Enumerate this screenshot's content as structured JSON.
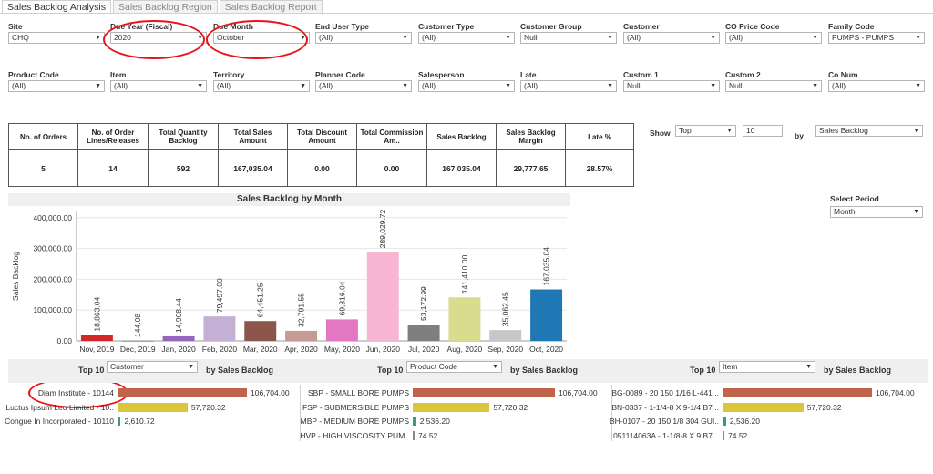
{
  "tabs": [
    "Sales Backlog Analysis",
    "Sales Backlog Region",
    "Sales Backlog Report"
  ],
  "filters_row1": [
    {
      "label": "Site",
      "value": "CHQ"
    },
    {
      "label": "Due Year (Fiscal)",
      "value": "2020"
    },
    {
      "label": "Due Month",
      "value": "October"
    },
    {
      "label": "End User Type",
      "value": "(All)"
    },
    {
      "label": "Customer Type",
      "value": "(All)"
    },
    {
      "label": "Customer Group",
      "value": "Null"
    },
    {
      "label": "Customer",
      "value": "(All)"
    },
    {
      "label": "CO Price Code",
      "value": "(All)"
    },
    {
      "label": "Family Code",
      "value": "PUMPS - PUMPS"
    }
  ],
  "filters_row2": [
    {
      "label": "Product Code",
      "value": "(All)"
    },
    {
      "label": "Item",
      "value": "(All)"
    },
    {
      "label": "Territory",
      "value": "(All)"
    },
    {
      "label": "Planner Code",
      "value": "(All)"
    },
    {
      "label": "Salesperson",
      "value": "(All)"
    },
    {
      "label": "Late",
      "value": "(All)"
    },
    {
      "label": "Custom 1",
      "value": "Null"
    },
    {
      "label": "Custom 2",
      "value": "Null"
    },
    {
      "label": "Co Num",
      "value": "(All)"
    }
  ],
  "kpi": {
    "headers": [
      "No. of Orders",
      "No. of Order Lines/Releases",
      "Total Quantity Backlog",
      "Total Sales Amount",
      "Total Discount Amount",
      "Total Commission Am..",
      "Sales Backlog",
      "Sales Backlog Margin",
      "Late %"
    ],
    "values": [
      "5",
      "14",
      "592",
      "167,035.04",
      "0.00",
      "0.00",
      "167,035.04",
      "29,777.65",
      "28.57%"
    ]
  },
  "show_controls": {
    "show_label": "Show",
    "top_value": "Top",
    "count_value": "10",
    "by_label": "by",
    "by_value": "Sales Backlog"
  },
  "select_period": {
    "label": "Select Period",
    "value": "Month"
  },
  "chart_data": {
    "type": "bar",
    "title": "Sales Backlog by Month",
    "ylabel": "Sales Backlog",
    "xlabel": "",
    "ylim": [
      0,
      420000
    ],
    "yticks": [
      0,
      100000,
      200000,
      300000,
      400000
    ],
    "ytick_labels": [
      "0.00",
      "100,000.00",
      "200,000.00",
      "300,000.00",
      "400,000.00"
    ],
    "categories": [
      "Nov, 2019",
      "Dec, 2019",
      "Jan, 2020",
      "Feb, 2020",
      "Mar, 2020",
      "Apr, 2020",
      "May, 2020",
      "Jun, 2020",
      "Jul, 2020",
      "Aug, 2020",
      "Sep, 2020",
      "Oct, 2020"
    ],
    "values": [
      18863.04,
      144.08,
      14908.44,
      79497.0,
      64451.25,
      32791.55,
      69816.04,
      289029.72,
      53172.99,
      141410.0,
      35062.45,
      167035.04
    ],
    "value_labels": [
      "18,863.04",
      "144.08",
      "14,908.44",
      "79,497.00",
      "64,451.25",
      "32,791.55",
      "69,816.04",
      "289,029.72",
      "53,172.99",
      "141,410.00",
      "35,062.45",
      "167,035.04"
    ],
    "colors": [
      "#d62728",
      "#444444",
      "#9467bd",
      "#c5b0d5",
      "#8c564b",
      "#c49c94",
      "#e377c2",
      "#f7b6d2",
      "#7f7f7f",
      "#dbdb8d",
      "#c7c7c7",
      "#1f77b4"
    ],
    "grid": true,
    "legend": "none"
  },
  "bottom": {
    "customer": {
      "top_label": "Top 10",
      "select_value": "Customer",
      "by_label": "by Sales Backlog",
      "rows": [
        {
          "label": "Diam Institute - 10144",
          "value": 106704.0,
          "value_label": "106,704.00",
          "color": "#c0634b"
        },
        {
          "label": "Luctus Ipsum Leo Limited - 10..",
          "value": 57720.32,
          "value_label": "57,720.32",
          "color": "#d9c63a"
        },
        {
          "label": "Congue In Incorporated - 10110",
          "value": 2610.72,
          "value_label": "2,610.72",
          "color": "#3d9a7a"
        }
      ]
    },
    "product": {
      "top_label": "Top 10",
      "select_value": "Product Code",
      "by_label": "by Sales Backlog",
      "rows": [
        {
          "label": "SBP - SMALL BORE PUMPS",
          "value": 106704.0,
          "value_label": "106,704.00",
          "color": "#c0634b"
        },
        {
          "label": "FSP - SUBMERSIBLE PUMPS",
          "value": 57720.32,
          "value_label": "57,720.32",
          "color": "#d9c63a"
        },
        {
          "label": "MBP - MEDIUM BORE PUMPS",
          "value": 2536.2,
          "value_label": "2,536.20",
          "color": "#3d9a7a"
        },
        {
          "label": "HVP - HIGH VISCOSITY PUM..",
          "value": 74.52,
          "value_label": "74.52",
          "color": "#8a8a8a"
        }
      ]
    },
    "item": {
      "top_label": "Top 10",
      "select_value": "Item",
      "by_label": "by Sales Backlog",
      "rows": [
        {
          "label": "BG-0089 - 20 150 1/16 L-441 ..",
          "value": 106704.0,
          "value_label": "106,704.00",
          "color": "#c0634b"
        },
        {
          "label": "BN-0337 - 1-1/4-8 X 9-1/4 B7 ..",
          "value": 57720.32,
          "value_label": "57,720.32",
          "color": "#d9c63a"
        },
        {
          "label": "BH-0107 - 20 150 1/8 304 GUI..",
          "value": 2536.2,
          "value_label": "2,536.20",
          "color": "#3d9a7a"
        },
        {
          "label": "051114063A - 1-1/8-8 X 9 B7 ..",
          "value": 74.52,
          "value_label": "74.52",
          "color": "#8a8a8a"
        }
      ]
    }
  }
}
